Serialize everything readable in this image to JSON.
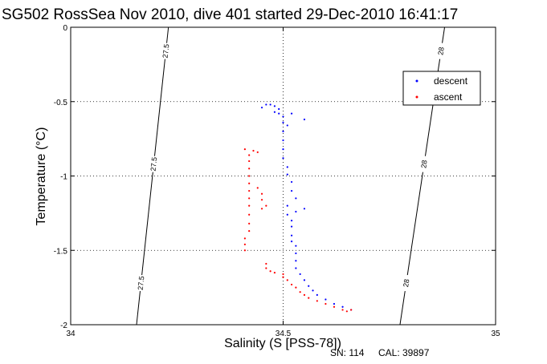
{
  "chart_data": {
    "type": "scatter",
    "title": "SG502 RossSea Nov 2010, dive 401 started 29-Dec-2010 16:41:17",
    "xlabel": "Salinity (S [PSS-78])",
    "ylabel": "Temperature (°C)",
    "xlim": [
      34,
      35
    ],
    "ylim": [
      -2,
      0
    ],
    "x_ticks": [
      34,
      34.5,
      35
    ],
    "x_tick_labels": [
      "34",
      "34.5",
      "35"
    ],
    "y_ticks": [
      0,
      -0.5,
      -1,
      -1.5,
      -2
    ],
    "y_tick_labels": [
      "0",
      "-0.5",
      "-1",
      "-1.5",
      "-2"
    ],
    "grid": true,
    "legend_position": "top-right",
    "isopycnals": [
      {
        "value": 27.5,
        "label": "27.5",
        "points": [
          [
            34.23,
            0
          ],
          [
            34.155,
            -2
          ]
        ]
      },
      {
        "value": 28,
        "label": "28",
        "points": [
          [
            34.88,
            0
          ],
          [
            34.775,
            -2
          ]
        ]
      }
    ],
    "series": [
      {
        "name": "descent",
        "color": "#0000ff",
        "points": [
          [
            34.46,
            -0.52
          ],
          [
            34.47,
            -0.52
          ],
          [
            34.48,
            -0.53
          ],
          [
            34.45,
            -0.54
          ],
          [
            34.49,
            -0.55
          ],
          [
            34.48,
            -0.57
          ],
          [
            34.49,
            -0.58
          ],
          [
            34.5,
            -0.6
          ],
          [
            34.52,
            -0.58
          ],
          [
            34.55,
            -0.62
          ],
          [
            34.5,
            -0.64
          ],
          [
            34.51,
            -0.66
          ],
          [
            34.5,
            -0.7
          ],
          [
            34.5,
            -0.76
          ],
          [
            34.5,
            -0.82
          ],
          [
            34.5,
            -0.88
          ],
          [
            34.51,
            -0.94
          ],
          [
            34.51,
            -0.99
          ],
          [
            34.52,
            -1.04
          ],
          [
            34.52,
            -1.1
          ],
          [
            34.53,
            -1.15
          ],
          [
            34.51,
            -1.2
          ],
          [
            34.51,
            -1.26
          ],
          [
            34.52,
            -1.3
          ],
          [
            34.53,
            -1.24
          ],
          [
            34.55,
            -1.22
          ],
          [
            34.52,
            -1.34
          ],
          [
            34.52,
            -1.4
          ],
          [
            34.52,
            -1.44
          ],
          [
            34.53,
            -1.47
          ],
          [
            34.53,
            -1.52
          ],
          [
            34.53,
            -1.57
          ],
          [
            34.53,
            -1.62
          ],
          [
            34.54,
            -1.66
          ],
          [
            34.55,
            -1.7
          ],
          [
            34.56,
            -1.74
          ],
          [
            34.57,
            -1.77
          ],
          [
            34.58,
            -1.8
          ],
          [
            34.6,
            -1.83
          ],
          [
            34.62,
            -1.86
          ],
          [
            34.64,
            -1.88
          ],
          [
            34.66,
            -1.9
          ]
        ]
      },
      {
        "name": "ascent",
        "color": "#ff0000",
        "points": [
          [
            34.41,
            -0.82
          ],
          [
            34.43,
            -0.83
          ],
          [
            34.44,
            -0.84
          ],
          [
            34.42,
            -0.86
          ],
          [
            34.42,
            -0.9
          ],
          [
            34.42,
            -0.95
          ],
          [
            34.42,
            -1.0
          ],
          [
            34.42,
            -1.05
          ],
          [
            34.42,
            -1.1
          ],
          [
            34.42,
            -1.15
          ],
          [
            34.42,
            -1.2
          ],
          [
            34.44,
            -1.08
          ],
          [
            34.45,
            -1.12
          ],
          [
            34.45,
            -1.16
          ],
          [
            34.46,
            -1.2
          ],
          [
            34.45,
            -1.22
          ],
          [
            34.42,
            -1.26
          ],
          [
            34.42,
            -1.32
          ],
          [
            34.42,
            -1.37
          ],
          [
            34.41,
            -1.42
          ],
          [
            34.41,
            -1.46
          ],
          [
            34.41,
            -1.5
          ],
          [
            34.46,
            -1.59
          ],
          [
            34.46,
            -1.62
          ],
          [
            34.47,
            -1.64
          ],
          [
            34.48,
            -1.65
          ],
          [
            34.5,
            -1.66
          ],
          [
            34.5,
            -1.68
          ],
          [
            34.51,
            -1.7
          ],
          [
            34.52,
            -1.73
          ],
          [
            34.53,
            -1.75
          ],
          [
            34.54,
            -1.78
          ],
          [
            34.55,
            -1.8
          ],
          [
            34.56,
            -1.82
          ],
          [
            34.58,
            -1.84
          ],
          [
            34.6,
            -1.86
          ],
          [
            34.62,
            -1.88
          ],
          [
            34.64,
            -1.9
          ],
          [
            34.65,
            -1.91
          ],
          [
            34.66,
            -1.9
          ]
        ]
      }
    ]
  },
  "footer": {
    "serial": "SN: 114",
    "cal": "CAL: 39897"
  }
}
